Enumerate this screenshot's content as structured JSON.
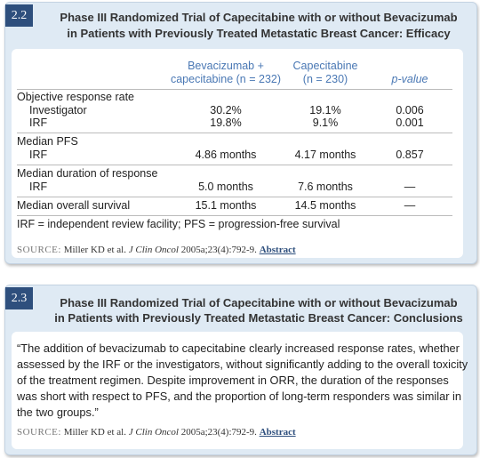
{
  "slides": [
    {
      "number": "2.2",
      "title": [
        "Phase III Randomized Trial of Capecitabine with or without Bevacizumab",
        "in Patients with Previously Treated Metastatic Breast Cancer: Efficacy"
      ],
      "table": {
        "headers": [
          [
            "Bevacizumab +",
            "capecitabine (n = 232)"
          ],
          [
            "Capecitabine",
            "(n = 230)"
          ],
          [
            "p-value"
          ]
        ],
        "sections": [
          {
            "heading": "Objective response rate",
            "rows": [
              {
                "label": "Investigator",
                "values": [
                  "30.2%",
                  "19.1%",
                  "0.006"
                ]
              },
              {
                "label": "IRF",
                "values": [
                  "19.8%",
                  "9.1%",
                  "0.001"
                ]
              }
            ]
          },
          {
            "heading": "Median PFS",
            "rows": [
              {
                "label": "IRF",
                "values": [
                  "4.86 months",
                  "4.17 months",
                  "0.857"
                ]
              }
            ]
          },
          {
            "heading": "Median duration of response",
            "rows": [
              {
                "label": "IRF",
                "values": [
                  "5.0 months",
                  "7.6 months",
                  "—"
                ]
              }
            ]
          },
          {
            "heading": "Median overall survival",
            "values": [
              "15.1 months",
              "14.5 months",
              "—"
            ]
          }
        ],
        "footnote": "IRF = independent review facility; PFS = progression-free survival"
      },
      "source": {
        "label": "SOURCE:",
        "authors": "Miller KD et al.",
        "journal": "J Clin Oncol",
        "citation": "2005a;23(4):792-9.",
        "link": "Abstract"
      }
    },
    {
      "number": "2.3",
      "title": [
        "Phase III Randomized Trial of Capecitabine with or without Bevacizumab",
        "in Patients with Previously Treated Metastatic Breast Cancer: Conclusions"
      ],
      "quote": [
        "“The addition of bevacizumab to capecitabine clearly increased response rates, whether",
        "assessed by the IRF or the investigators, without significantly adding to the overall toxicity",
        "of the treatment regimen. Despite improvement in ORR, the duration of the responses",
        "was short with respect to PFS, and the proportion of long-term responders was similar in",
        "the two groups.”"
      ],
      "source": {
        "label": "SOURCE:",
        "authors": "Miller KD et al.",
        "journal": "J Clin Oncol",
        "citation": "2005a;23(4):792-9.",
        "link": "Abstract"
      }
    }
  ]
}
